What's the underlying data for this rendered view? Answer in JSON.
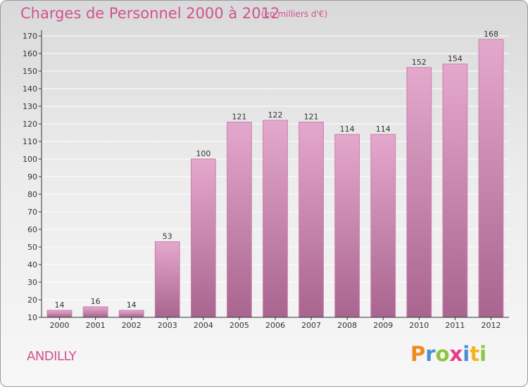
{
  "header": {
    "title": "Charges de Personnel 2000 à 2012",
    "subtitle": "(en milliers d'€)"
  },
  "footer": {
    "town": "ANDILLY"
  },
  "logo": {
    "letters": [
      "P",
      "r",
      "o",
      "x",
      "i",
      "t",
      "i"
    ],
    "colors": [
      "#f08a1c",
      "#4a8fd6",
      "#8cc63f",
      "#e63a8a",
      "#4a8fd6",
      "#f2b51b",
      "#8cc63f"
    ]
  },
  "colors": {
    "bar_top": "#e5a8cd",
    "bar_bottom": "#a8658f",
    "text": "#d0538f",
    "axis": "#333333"
  },
  "chart_data": {
    "type": "bar",
    "title": "Charges de Personnel 2000 à 2012",
    "subtitle": "(en milliers d'€)",
    "categories": [
      "2000",
      "2001",
      "2002",
      "2003",
      "2004",
      "2005",
      "2006",
      "2007",
      "2008",
      "2009",
      "2010",
      "2011",
      "2012"
    ],
    "values": [
      14,
      16,
      14,
      53,
      100,
      121,
      122,
      121,
      114,
      114,
      152,
      154,
      168
    ],
    "ylim": [
      10,
      170
    ],
    "yticks": [
      10,
      20,
      30,
      40,
      50,
      60,
      70,
      80,
      90,
      100,
      110,
      120,
      130,
      140,
      150,
      160,
      170
    ],
    "grid": true
  }
}
